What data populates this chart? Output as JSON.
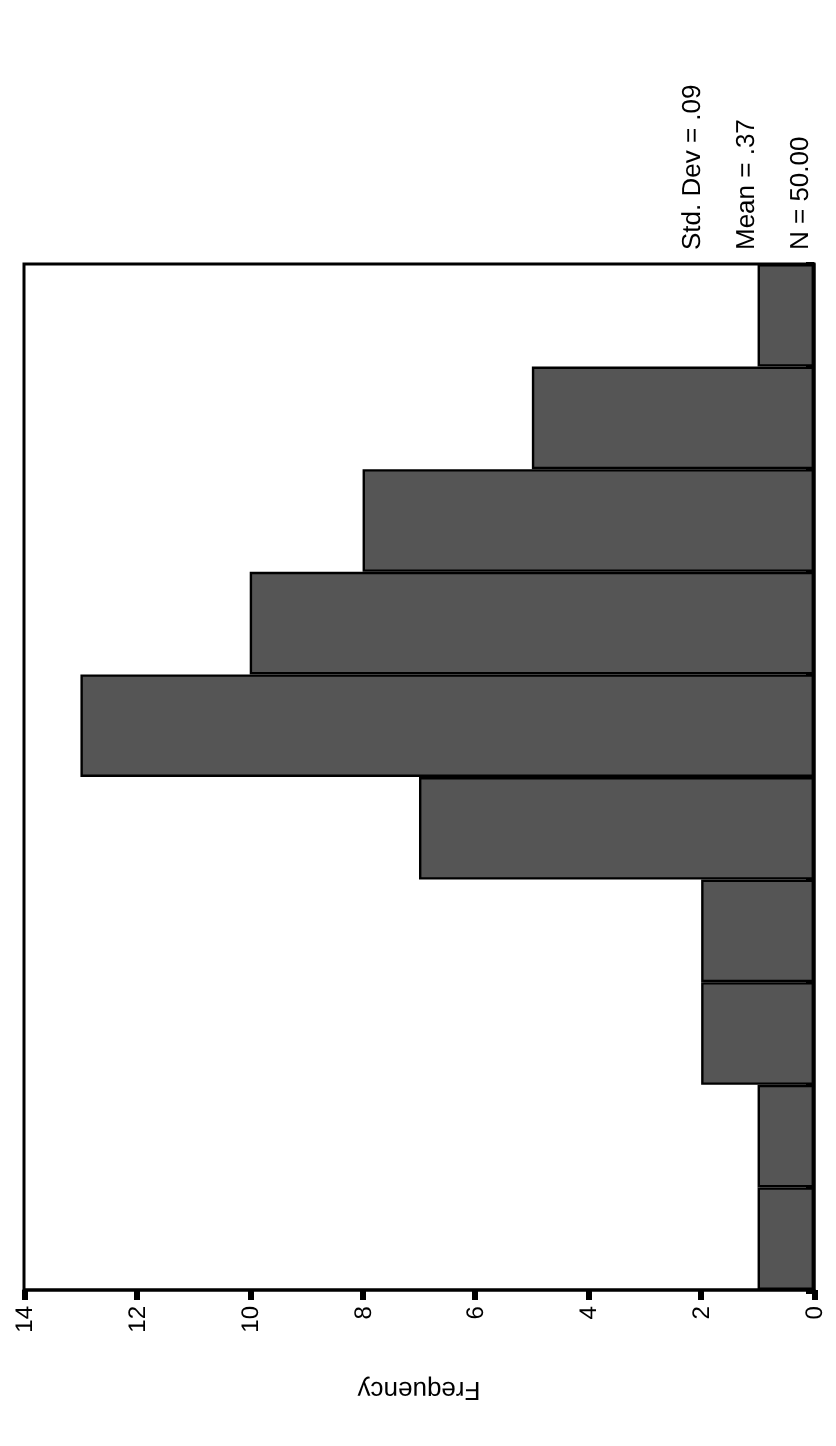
{
  "chart_data": {
    "type": "bar",
    "orientation": "horizontal",
    "xlabel": "Frequency",
    "annotations": [
      "Std. Dev = .09",
      "Mean = .37",
      "N = 50.00"
    ],
    "categories": [
      null,
      null,
      null,
      null,
      null,
      null,
      null,
      null,
      null,
      null
    ],
    "values": [
      1,
      5,
      8,
      10,
      13,
      7,
      2,
      2,
      1,
      1
    ],
    "color": "#555555",
    "xlim": [
      14,
      0
    ],
    "xticks": [
      0,
      2,
      4,
      6,
      8,
      10,
      12,
      14
    ],
    "grid": false
  }
}
